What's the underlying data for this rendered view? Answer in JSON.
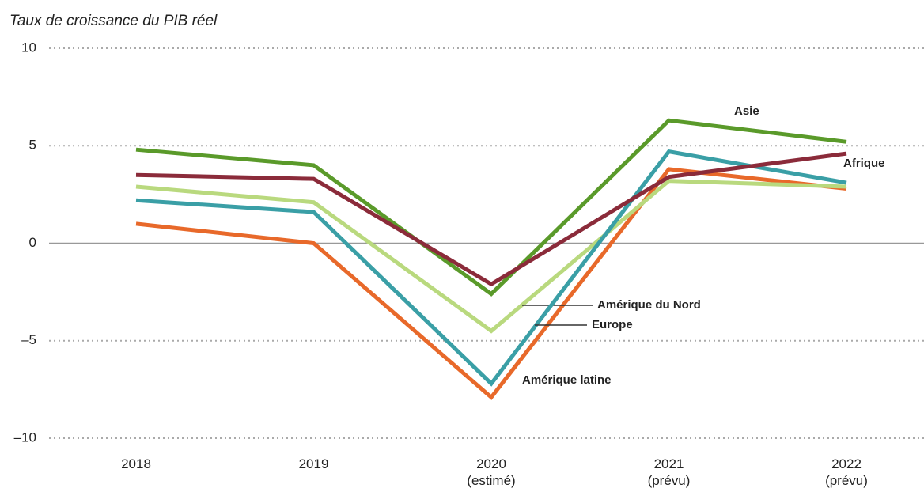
{
  "chart_data": {
    "type": "line",
    "title": "Taux de croissance du PIB réel",
    "categories": [
      "2018",
      "2019",
      "2020\n(estimé)",
      "2021\n(prévu)",
      "2022\n(prévu)"
    ],
    "ylim": [
      -10,
      10
    ],
    "yticks": [
      {
        "value": -10,
        "label": "–10"
      },
      {
        "value": -5,
        "label": "–5"
      },
      0,
      5,
      10
    ],
    "grid": true,
    "series": [
      {
        "name": "Amérique latine",
        "color": "#e8692a",
        "values": [
          1.0,
          0.0,
          -7.9,
          3.8,
          2.8
        ]
      },
      {
        "name": "Amérique du Nord",
        "color": "#b9d97e",
        "values": [
          2.9,
          2.1,
          -4.5,
          3.2,
          2.9
        ]
      },
      {
        "name": "Europe",
        "color": "#3a9fa6",
        "values": [
          2.2,
          1.6,
          -7.2,
          4.7,
          3.1
        ]
      },
      {
        "name": "Asie",
        "color": "#5a9a2a",
        "values": [
          4.8,
          4.0,
          -2.6,
          6.3,
          5.2
        ]
      },
      {
        "name": "Afrique",
        "color": "#8b2b3a",
        "values": [
          3.5,
          3.3,
          -2.1,
          3.4,
          4.6
        ]
      }
    ]
  }
}
